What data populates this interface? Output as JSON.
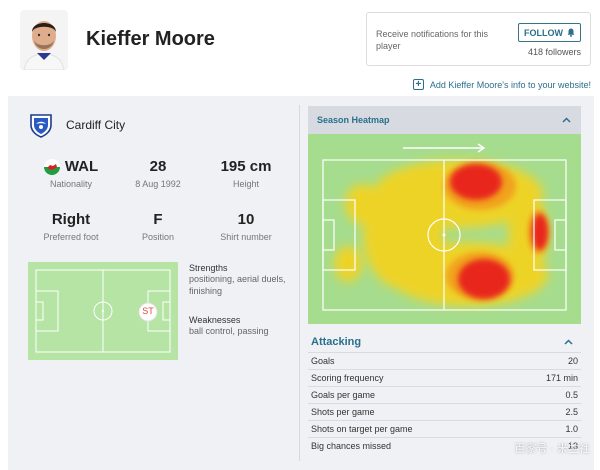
{
  "player": {
    "name": "Kieffer Moore"
  },
  "notify": {
    "text": "Receive notifications for this player",
    "follow_label": "FOLLOW",
    "followers": "418 followers"
  },
  "add_info": {
    "label": "Add Kieffer Moore's info to your website!"
  },
  "club": {
    "name": "Cardiff City"
  },
  "stats": [
    {
      "value": "WAL",
      "label": "Nationality"
    },
    {
      "value": "28",
      "label": "8 Aug 1992"
    },
    {
      "value": "195 cm",
      "label": "Height"
    },
    {
      "value": "Right",
      "label": "Preferred foot"
    },
    {
      "value": "F",
      "label": "Position"
    },
    {
      "value": "10",
      "label": "Shirt number"
    }
  ],
  "position": {
    "marker": "ST",
    "strengths_title": "Strengths",
    "strengths": "positioning, aerial duels, finishing",
    "weaknesses_title": "Weaknesses",
    "weaknesses": "ball control, passing"
  },
  "heatmap": {
    "title": "Season Heatmap"
  },
  "attacking": {
    "title": "Attacking",
    "rows": [
      {
        "label": "Goals",
        "value": "20"
      },
      {
        "label": "Scoring frequency",
        "value": "171 min"
      },
      {
        "label": "Goals per game",
        "value": "0.5"
      },
      {
        "label": "Shots per game",
        "value": "2.5"
      },
      {
        "label": "Shots on target per game",
        "value": "1.0"
      },
      {
        "label": "Big chances missed",
        "value": "13"
      }
    ]
  },
  "watermark": "百家号 · 米兰社",
  "colors": {
    "accent": "#2a6f8b",
    "pitch": "#b5e4a4",
    "heat_hot": "#e8251a",
    "heat_warm": "#f6d31c"
  }
}
